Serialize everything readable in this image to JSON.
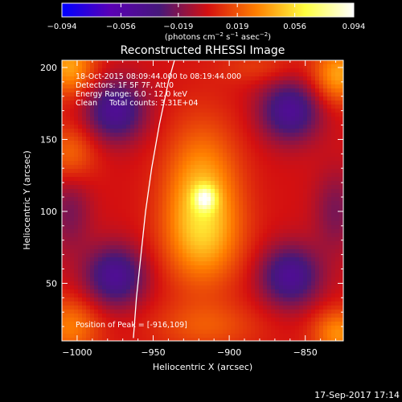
{
  "chart_data": {
    "type": "heatmap",
    "title": "Reconstructed RHESSI Image",
    "xlabel": "Heliocentric X (arcsec)",
    "ylabel": "Heliocentric Y (arcsec)",
    "xlim": [
      -1010,
      -825
    ],
    "ylim": [
      10,
      205
    ],
    "x_ticks": [
      -1000,
      -950,
      -900,
      -850
    ],
    "y_ticks": [
      50,
      100,
      150,
      200
    ],
    "x_tick_labels": [
      "−1000",
      "−950",
      "−900",
      "−850"
    ],
    "y_tick_labels": [
      "50",
      "100",
      "150",
      "200"
    ],
    "colorbar": {
      "range": [
        -0.094,
        0.094
      ],
      "ticks": [
        -0.094,
        -0.056,
        -0.019,
        0.019,
        0.056,
        0.094
      ],
      "tick_labels": [
        "−0.094",
        "−0.056",
        "−0.019",
        "0.019",
        "0.056",
        "0.094"
      ],
      "unit_label_parts": [
        "(photons cm",
        "−2",
        " s",
        "−1",
        " asec",
        "−2",
        ")"
      ],
      "colors": [
        "#0000ff",
        "#5a00b4",
        "#46187a",
        "#d41010",
        "#ff7f00",
        "#ffff40",
        "#ffffff"
      ]
    },
    "annotations": [
      "18-Oct-2015 08:09:44.000 to 08:19:44.000",
      "Detectors: 1F 5F 7F, Att 0",
      "Energy Range: 6.0 - 12.0 keV",
      "Clean     Total counts: 3.31E+04"
    ],
    "peak_label": "Position of Peak = [-916,109]",
    "peak": [
      -916,
      109
    ],
    "peak_value": 0.094,
    "limb_curve": [
      [
        -963,
        12
      ],
      [
        -961,
        40
      ],
      [
        -958,
        70
      ],
      [
        -955,
        100
      ],
      [
        -951,
        130
      ],
      [
        -946,
        160
      ],
      [
        -940,
        190
      ],
      [
        -936,
        205
      ]
    ],
    "sources": [
      {
        "x": -916,
        "y": 109,
        "sx": 5,
        "sy": 6,
        "amp": 0.045
      },
      {
        "x": -918,
        "y": 105,
        "sx": 17,
        "sy": 36,
        "amp": 0.05
      },
      {
        "x": -916,
        "y": 80,
        "sx": 20,
        "sy": 20,
        "amp": 0.012
      },
      {
        "x": -1005,
        "y": 200,
        "sx": 12,
        "sy": 14,
        "amp": 0.04
      },
      {
        "x": -1005,
        "y": 140,
        "sx": 12,
        "sy": 14,
        "amp": 0.025
      },
      {
        "x": -1005,
        "y": 20,
        "sx": 14,
        "sy": 14,
        "amp": 0.03
      },
      {
        "x": -828,
        "y": 195,
        "sx": 12,
        "sy": 14,
        "amp": 0.04
      },
      {
        "x": -828,
        "y": 15,
        "sx": 12,
        "sy": 12,
        "amp": 0.035
      },
      {
        "x": -915,
        "y": 20,
        "sx": 25,
        "sy": 12,
        "amp": 0.018
      },
      {
        "x": -880,
        "y": 200,
        "sx": 18,
        "sy": 8,
        "amp": 0.012
      },
      {
        "x": -975,
        "y": 170,
        "sx": 14,
        "sy": 15,
        "amp": -0.045
      },
      {
        "x": -975,
        "y": 55,
        "sx": 14,
        "sy": 15,
        "amp": -0.045
      },
      {
        "x": -860,
        "y": 170,
        "sx": 14,
        "sy": 15,
        "amp": -0.045
      },
      {
        "x": -860,
        "y": 55,
        "sx": 14,
        "sy": 15,
        "amp": -0.045
      },
      {
        "x": -1005,
        "y": 100,
        "sx": 10,
        "sy": 20,
        "amp": -0.02
      },
      {
        "x": -830,
        "y": 100,
        "sx": 10,
        "sy": 20,
        "amp": -0.02
      }
    ]
  },
  "footer": {
    "timestamp": "17-Sep-2017 17:14"
  }
}
